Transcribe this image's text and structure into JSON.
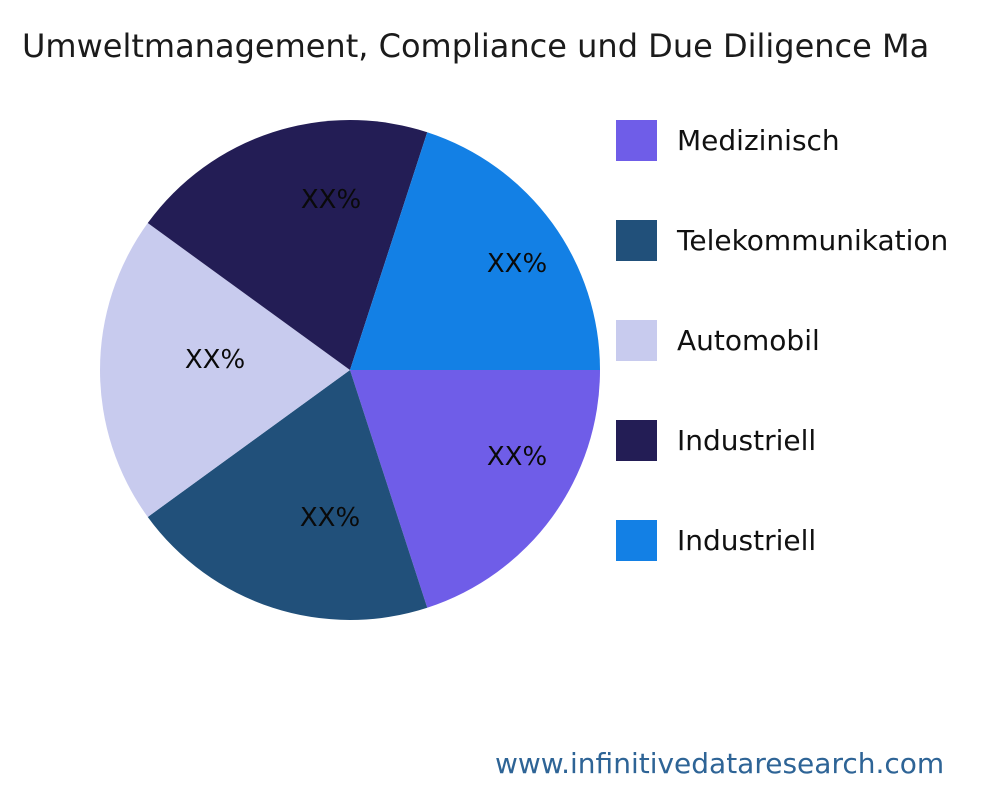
{
  "title": "Umweltmanagement, Compliance und Due Diligence Ma",
  "watermark": {
    "url_text": "www.infinitivedataresearch.com",
    "color": "#2E6496"
  },
  "chart_data": {
    "type": "pie",
    "title": "Umweltmanagement, Compliance und Due Diligence Ma",
    "start_angle_deg": 0,
    "direction": "clockwise",
    "legend_position": "right",
    "value_placeholder": "XX%",
    "slices": [
      {
        "label": "Medizinisch",
        "value": 20,
        "value_label": "XX%",
        "color": "#6F5DE8"
      },
      {
        "label": "Telekommunikation",
        "value": 20,
        "value_label": "XX%",
        "color": "#21507A"
      },
      {
        "label": "Automobil",
        "value": 20,
        "value_label": "XX%",
        "color": "#C8CBEE"
      },
      {
        "label": "Industriell",
        "value": 20,
        "value_label": "XX%",
        "color": "#231D55"
      },
      {
        "label": "Industriell",
        "value": 20,
        "value_label": "XX%",
        "color": "#1380E5"
      }
    ]
  }
}
